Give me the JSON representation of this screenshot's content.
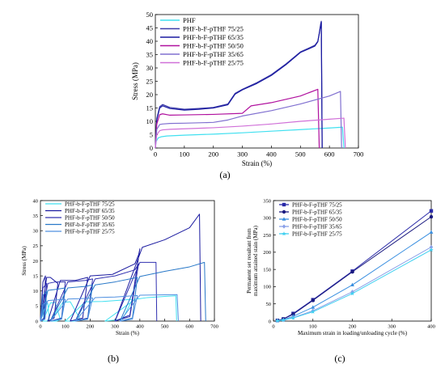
{
  "figure": {
    "captions": [
      "(a)",
      "(b)",
      "(c)"
    ]
  },
  "chart_data": [
    {
      "type": "line",
      "xlabel": "Strain (%)",
      "ylabel": "Stress (MPa)",
      "xlim": [
        0,
        700
      ],
      "ylim": [
        0,
        50
      ],
      "xticks": [
        0,
        100,
        200,
        300,
        400,
        500,
        600,
        700
      ],
      "yticks": [
        0,
        5,
        10,
        15,
        20,
        25,
        30,
        35,
        40,
        45,
        50
      ],
      "legend_position": "top-left",
      "series": [
        {
          "name": "PHF",
          "color": "#40e0f0",
          "x": [
            0,
            3,
            10,
            20,
            40,
            100,
            200,
            300,
            400,
            500,
            600,
            645,
            650
          ],
          "y": [
            0,
            2.5,
            3.8,
            4.2,
            4.5,
            4.8,
            5.2,
            5.7,
            6.3,
            6.9,
            7.5,
            7.8,
            0
          ]
        },
        {
          "name": "PHF-b-F-pTHF 75/25",
          "color": "#3a3aa8",
          "x": [
            0,
            5,
            15,
            25,
            50,
            100,
            150,
            200,
            250,
            275,
            300,
            350,
            400,
            450,
            500,
            530,
            550,
            560,
            565,
            570,
            572,
            575
          ],
          "y": [
            0,
            11,
            15.5,
            16.3,
            15.2,
            14.5,
            14.8,
            15.2,
            16.5,
            20.5,
            22,
            24.5,
            27.5,
            31.5,
            36,
            37.5,
            38.5,
            40,
            43,
            46.5,
            47.5,
            0
          ]
        },
        {
          "name": "PHF-b-F-pTHF 65/35",
          "color": "#1a1aa0",
          "x": [
            0,
            5,
            15,
            25,
            50,
            100,
            150,
            200,
            250,
            275,
            300,
            350,
            400,
            450,
            500,
            530,
            550,
            560,
            565,
            570,
            572,
            575
          ],
          "y": [
            0,
            10.5,
            15,
            15.8,
            14.8,
            14.2,
            14.5,
            15,
            16.2,
            20.2,
            21.8,
            24.2,
            27.2,
            31.2,
            35.8,
            37.2,
            38.2,
            39.8,
            42.8,
            46.2,
            47.2,
            0
          ]
        },
        {
          "name": "PHF-b-F-pTHF 50/50",
          "color": "#b0109e",
          "x": [
            0,
            5,
            15,
            25,
            50,
            100,
            200,
            300,
            330,
            400,
            500,
            560,
            565
          ],
          "y": [
            0,
            9,
            12.5,
            12.8,
            12.3,
            12.4,
            12.6,
            13,
            15.8,
            17,
            19.5,
            22,
            0
          ]
        },
        {
          "name": "PHF-b-F-pTHF 35/65",
          "color": "#8070d0",
          "x": [
            0,
            5,
            15,
            25,
            50,
            100,
            200,
            250,
            300,
            400,
            500,
            600,
            638,
            642
          ],
          "y": [
            0,
            7,
            8.8,
            9,
            9.2,
            9.3,
            9.6,
            10.5,
            12,
            14,
            16.5,
            19.5,
            21.2,
            0
          ]
        },
        {
          "name": "PHF-b-F-pTHF 25/75",
          "color": "#d070d8",
          "x": [
            0,
            5,
            15,
            25,
            50,
            100,
            200,
            300,
            400,
            500,
            600,
            650,
            655
          ],
          "y": [
            0,
            5,
            6.5,
            6.8,
            7,
            7.2,
            7.6,
            8.2,
            9,
            10,
            10.8,
            11.2,
            0
          ]
        }
      ]
    },
    {
      "type": "line",
      "xlabel": "Strain (%)",
      "ylabel": "Stress (MPa)",
      "xlim": [
        0,
        700
      ],
      "ylim": [
        0,
        40
      ],
      "xticks": [
        0,
        100,
        200,
        300,
        400,
        500,
        600,
        700
      ],
      "yticks": [
        0,
        5,
        10,
        15,
        20,
        25,
        30,
        35,
        40
      ],
      "legend_position": "top-left",
      "series": [
        {
          "name": "PHF-b-F-pTHF 75/25",
          "color": "#40e0f0",
          "x": [
            0,
            8,
            15,
            12,
            0,
            20,
            30,
            35,
            25,
            10,
            40,
            60,
            80,
            65,
            40,
            90,
            120,
            160,
            140,
            100,
            180,
            250,
            370,
            330,
            260,
            380,
            430,
            500,
            545,
            548
          ],
          "y": [
            0,
            4.5,
            5,
            0.5,
            0,
            5.5,
            5.8,
            0.6,
            0,
            0,
            6,
            6.2,
            0.5,
            0,
            0,
            6.2,
            6.4,
            0.6,
            0,
            0,
            6.4,
            6.5,
            7.2,
            0.6,
            0,
            7.2,
            7.8,
            8.2,
            8.4,
            0
          ]
        },
        {
          "name": "PHF-b-F-pTHF 65/35",
          "color": "#1a1aa0",
          "x": [
            0,
            10,
            20,
            15,
            0,
            25,
            40,
            70,
            55,
            30,
            80,
            140,
            190,
            170,
            120,
            200,
            290,
            380,
            395,
            400,
            360,
            300,
            410,
            500,
            600,
            640,
            645
          ],
          "y": [
            0,
            13,
            15,
            1,
            0,
            14.5,
            14.5,
            12.5,
            1,
            0,
            13.5,
            13.5,
            14.5,
            1,
            0,
            15,
            15.5,
            19,
            22,
            24,
            2,
            0,
            24.5,
            27,
            31,
            35.5,
            0
          ]
        },
        {
          "name": "PHF-b-F-pTHF 50/50",
          "color": "#3030b0",
          "x": [
            0,
            10,
            25,
            18,
            0,
            30,
            60,
            100,
            85,
            40,
            110,
            180,
            210,
            190,
            140,
            220,
            300,
            380,
            395,
            360,
            300,
            400,
            440,
            465,
            468
          ],
          "y": [
            0,
            11,
            12.5,
            1,
            0,
            12.5,
            13,
            13,
            1,
            0,
            13,
            13.5,
            14,
            1,
            0,
            14,
            15,
            17,
            19,
            1.5,
            0,
            19.5,
            19.5,
            19.5,
            0
          ]
        },
        {
          "name": "PHF-b-F-pTHF 35/65",
          "color": "#2878c8",
          "x": [
            0,
            10,
            25,
            18,
            0,
            30,
            60,
            100,
            85,
            40,
            110,
            180,
            210,
            190,
            140,
            220,
            300,
            390,
            370,
            320,
            400,
            500,
            600,
            660,
            665
          ],
          "y": [
            0,
            8.5,
            10,
            0.8,
            0,
            10.2,
            10.5,
            11,
            0.8,
            0,
            11,
            11.5,
            12,
            0.8,
            0,
            12,
            13,
            14.5,
            1,
            0,
            14.8,
            16.5,
            18,
            19.5,
            0
          ]
        },
        {
          "name": "PHF-b-F-pTHF 25/75",
          "color": "#5090e0",
          "x": [
            0,
            10,
            25,
            18,
            0,
            30,
            60,
            100,
            85,
            40,
            110,
            180,
            210,
            190,
            140,
            220,
            300,
            390,
            370,
            320,
            400,
            550,
            555
          ],
          "y": [
            0,
            5.5,
            6.5,
            0.6,
            0,
            6.8,
            7,
            7.2,
            0.6,
            0,
            7.3,
            7.5,
            7.7,
            0.6,
            0,
            7.8,
            8,
            8.5,
            0.6,
            0,
            8.6,
            8.8,
            0
          ]
        }
      ]
    },
    {
      "type": "line",
      "xlabel": "Maximum strain in loading/unloading cycle (%)",
      "ylabel": "Permanent set resultant from maximum attained stain (MPa)",
      "xlim": [
        0,
        400
      ],
      "ylim": [
        0,
        350
      ],
      "xticks": [
        0,
        100,
        200,
        300,
        400
      ],
      "yticks": [
        0,
        50,
        100,
        150,
        200,
        250,
        300,
        350
      ],
      "legend_position": "top-left",
      "series": [
        {
          "name": "PHF-b-F-pTHF 75/25",
          "color": "#2a2aa8",
          "marker": "square",
          "x": [
            10,
            25,
            50,
            100,
            200,
            400
          ],
          "y": [
            2,
            6,
            22,
            62,
            145,
            320
          ]
        },
        {
          "name": "PHF-b-F-pTHF 65/35",
          "color": "#1a1a80",
          "marker": "circle",
          "x": [
            10,
            25,
            50,
            100,
            200,
            400
          ],
          "y": [
            2,
            6,
            20,
            60,
            143,
            303
          ]
        },
        {
          "name": "PHF-b-F-pTHF 50/50",
          "color": "#3a8fe0",
          "marker": "triangle",
          "x": [
            10,
            25,
            50,
            100,
            200,
            400
          ],
          "y": [
            1.5,
            4,
            14,
            40,
            105,
            258
          ]
        },
        {
          "name": "PHF-b-F-pTHF 35/65",
          "color": "#8aa0e8",
          "marker": "diamond",
          "x": [
            10,
            25,
            50,
            100,
            200,
            400
          ],
          "y": [
            1,
            3,
            10,
            30,
            85,
            215
          ]
        },
        {
          "name": "PHF-b-F-pTHF 25/75",
          "color": "#40d0f0",
          "marker": "star",
          "x": [
            10,
            25,
            50,
            100,
            200,
            400
          ],
          "y": [
            1,
            3,
            9,
            27,
            80,
            207
          ]
        }
      ]
    }
  ]
}
